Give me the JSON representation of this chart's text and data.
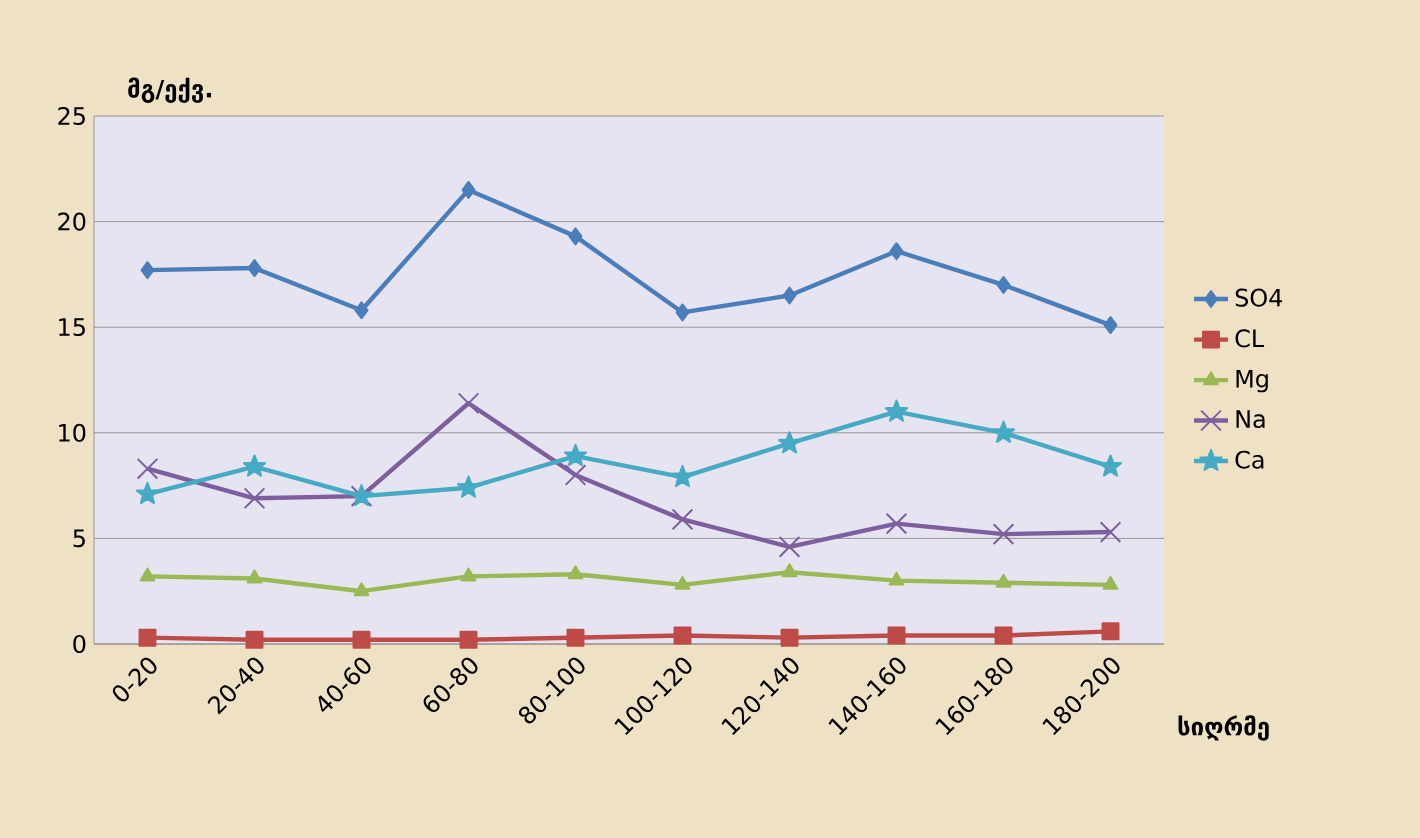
{
  "chart_data": {
    "type": "line",
    "ylabel": "მგ/ექვ.",
    "xlabel": "სიღრმე",
    "categories": [
      "0-20",
      "20-40",
      "40-60",
      "60-80",
      "80-100",
      "100-120",
      "120-140",
      "140-160",
      "160-180",
      "180-200"
    ],
    "series": [
      {
        "name": "SO4",
        "color": "#4a7ebb",
        "marker": "diamond",
        "values": [
          17.7,
          17.8,
          15.8,
          21.5,
          19.3,
          15.7,
          16.5,
          18.6,
          17.0,
          15.1
        ]
      },
      {
        "name": "CL",
        "color": "#be4b48",
        "marker": "square",
        "values": [
          0.3,
          0.2,
          0.2,
          0.2,
          0.3,
          0.4,
          0.3,
          0.4,
          0.4,
          0.6
        ]
      },
      {
        "name": "Mg",
        "color": "#98b954",
        "marker": "triangle",
        "values": [
          3.2,
          3.1,
          2.5,
          3.2,
          3.3,
          2.8,
          3.4,
          3.0,
          2.9,
          2.8
        ]
      },
      {
        "name": "Na",
        "color": "#7d5fa0",
        "marker": "cross",
        "values": [
          8.3,
          6.9,
          7.0,
          11.4,
          8.0,
          5.9,
          4.6,
          5.7,
          5.2,
          5.3
        ]
      },
      {
        "name": "Ca",
        "color": "#46aac5",
        "marker": "star",
        "values": [
          7.1,
          8.4,
          7.0,
          7.4,
          8.9,
          7.9,
          9.5,
          11.0,
          10.0,
          8.4
        ]
      }
    ],
    "ylim": [
      0,
      25
    ],
    "yticks": [
      0,
      5,
      10,
      15,
      20,
      25
    ],
    "grid": "y",
    "legend": "right",
    "line_style": "solid"
  }
}
